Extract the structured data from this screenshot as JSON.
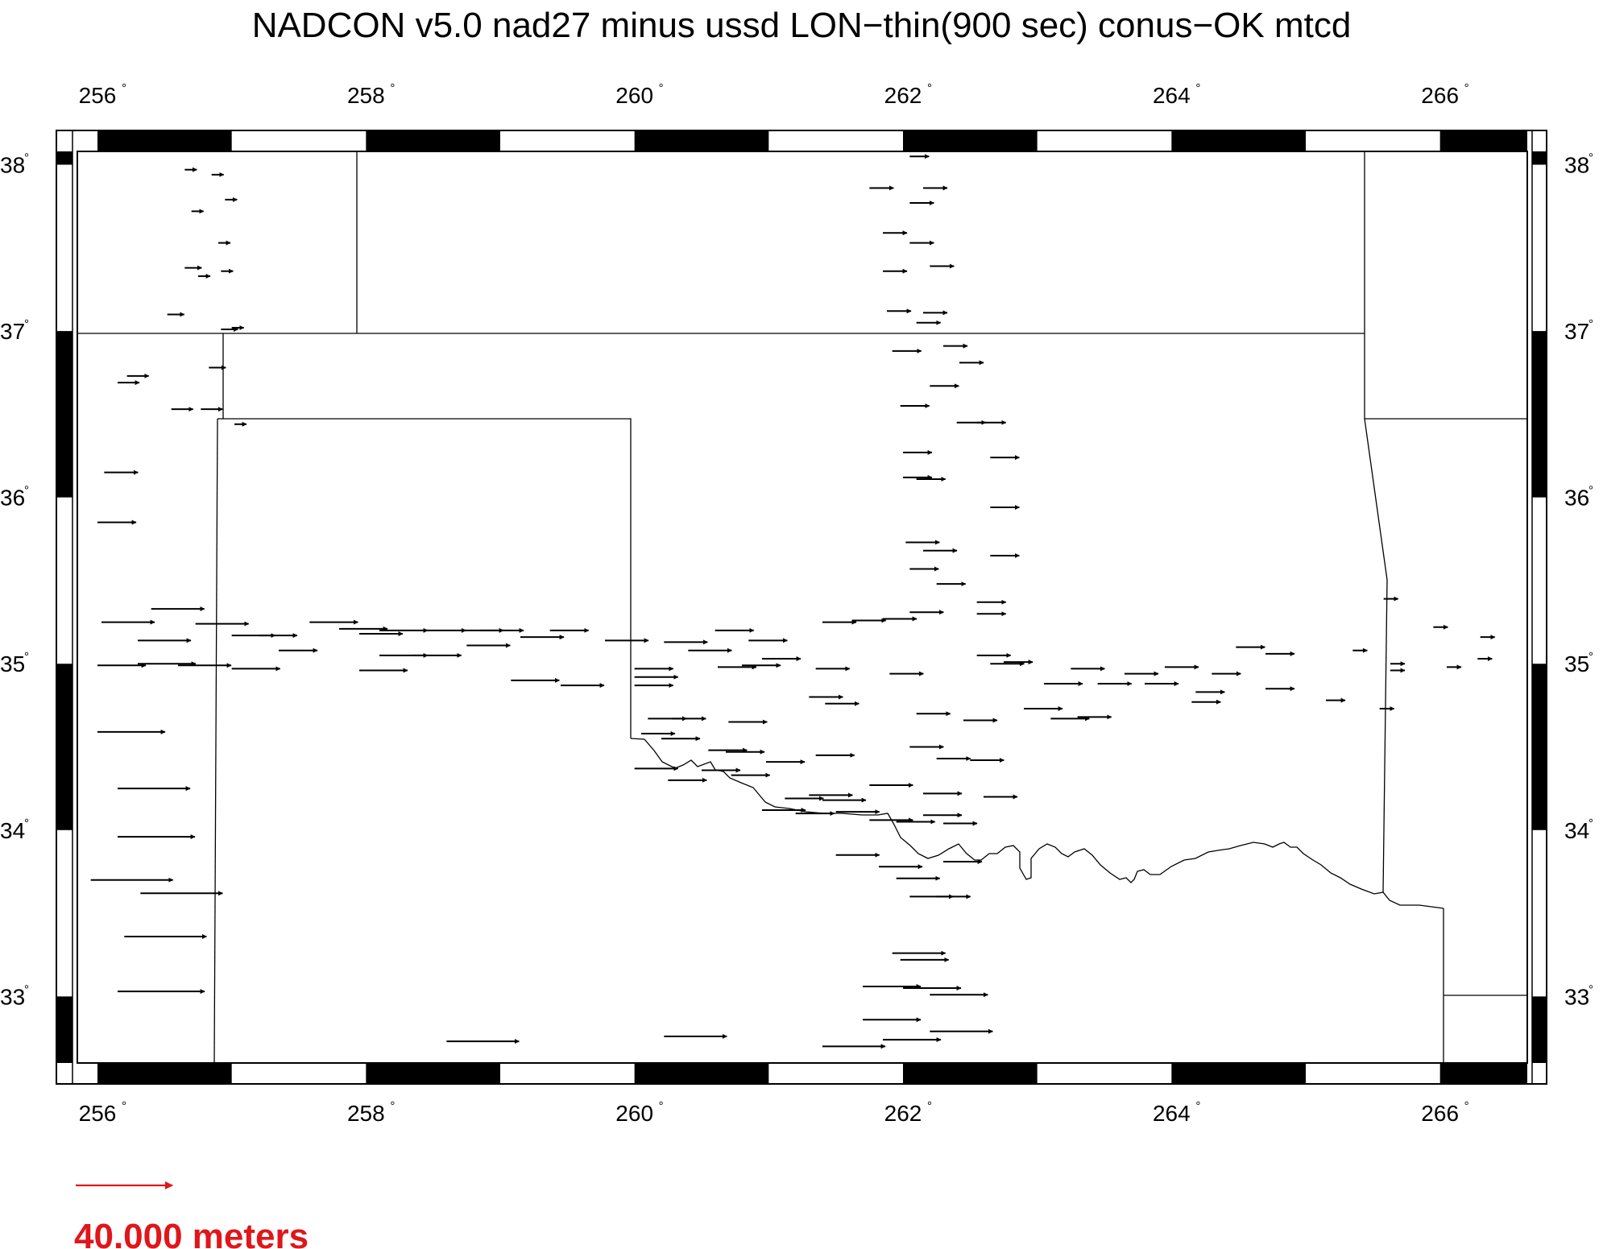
{
  "title": "NADCON v5.0 nad27 minus ussd LON−thin(900 sec) conus−OK mtcd",
  "legend": {
    "label": "40.000 meters",
    "value_m": 40,
    "color": "#e0161b"
  },
  "colors": {
    "arrow": "#000000",
    "border": "#000000",
    "background": "#ffffff",
    "legend": "#e0161b"
  },
  "axes": {
    "lon_ticks": [
      256,
      258,
      260,
      262,
      264,
      266
    ],
    "lat_ticks": [
      33,
      34,
      35,
      36,
      37,
      38
    ],
    "lon_tick_labels": [
      "256",
      "258",
      "260",
      "262",
      "264",
      "266"
    ],
    "lat_tick_labels": [
      "33",
      "34",
      "35",
      "36",
      "37",
      "38"
    ],
    "degree_symbol": "°",
    "lon_range": [
      255.85,
      266.65
    ],
    "lat_range": [
      32.6,
      38.08
    ]
  },
  "arrows_note": "lon, lat, length in meters (eastward)",
  "arrows": [
    [
      256.65,
      37.97,
      5
    ],
    [
      256.85,
      37.94,
      5
    ],
    [
      256.95,
      37.79,
      5
    ],
    [
      256.7,
      37.72,
      5
    ],
    [
      256.9,
      37.53,
      5
    ],
    [
      256.65,
      37.38,
      7
    ],
    [
      256.75,
      37.33,
      5
    ],
    [
      256.92,
      37.36,
      5
    ],
    [
      256.52,
      37.1,
      7
    ],
    [
      256.92,
      37.01,
      7
    ],
    [
      257.0,
      37.02,
      5
    ],
    [
      256.22,
      36.73,
      9
    ],
    [
      256.15,
      36.69,
      9
    ],
    [
      256.83,
      36.78,
      7
    ],
    [
      256.55,
      36.53,
      9
    ],
    [
      256.77,
      36.53,
      9
    ],
    [
      257.02,
      36.44,
      5
    ],
    [
      256.05,
      36.15,
      14
    ],
    [
      256.0,
      35.85,
      16
    ],
    [
      256.03,
      35.25,
      22
    ],
    [
      256.4,
      35.33,
      22
    ],
    [
      256.3,
      35.14,
      22
    ],
    [
      256.73,
      35.24,
      22
    ],
    [
      256.0,
      34.99,
      20
    ],
    [
      256.3,
      35.0,
      24
    ],
    [
      256.6,
      34.99,
      22
    ],
    [
      257.0,
      35.17,
      18
    ],
    [
      257.2,
      35.17,
      16
    ],
    [
      257.0,
      34.97,
      20
    ],
    [
      257.35,
      35.08,
      16
    ],
    [
      257.58,
      35.25,
      20
    ],
    [
      257.8,
      35.21,
      20
    ],
    [
      257.95,
      35.18,
      18
    ],
    [
      258.1,
      35.2,
      20
    ],
    [
      258.42,
      35.2,
      18
    ],
    [
      258.7,
      35.2,
      18
    ],
    [
      258.85,
      35.2,
      18
    ],
    [
      258.75,
      35.11,
      18
    ],
    [
      257.95,
      34.96,
      20
    ],
    [
      258.1,
      35.05,
      20
    ],
    [
      258.35,
      35.05,
      20
    ],
    [
      259.08,
      34.9,
      20
    ],
    [
      259.15,
      35.16,
      18
    ],
    [
      259.37,
      35.2,
      16
    ],
    [
      259.45,
      34.87,
      18
    ],
    [
      259.78,
      35.14,
      18
    ],
    [
      260.0,
      34.92,
      18
    ],
    [
      260.0,
      34.87,
      16
    ],
    [
      260.0,
      34.97,
      16
    ],
    [
      260.22,
      35.13,
      18
    ],
    [
      260.4,
      35.08,
      18
    ],
    [
      260.6,
      35.2,
      16
    ],
    [
      260.62,
      34.98,
      16
    ],
    [
      260.8,
      34.99,
      16
    ],
    [
      260.85,
      35.14,
      16
    ],
    [
      260.95,
      35.03,
      16
    ],
    [
      260.1,
      34.67,
      16
    ],
    [
      260.28,
      34.67,
      14
    ],
    [
      260.05,
      34.58,
      14
    ],
    [
      260.2,
      34.55,
      16
    ],
    [
      260.0,
      34.37,
      18
    ],
    [
      260.25,
      34.3,
      16
    ],
    [
      260.5,
      34.36,
      16
    ],
    [
      260.55,
      34.48,
      16
    ],
    [
      260.68,
      34.47,
      16
    ],
    [
      260.72,
      34.33,
      16
    ],
    [
      260.7,
      34.65,
      16
    ],
    [
      260.98,
      34.41,
      16
    ],
    [
      260.95,
      34.12,
      18
    ],
    [
      261.12,
      34.19,
      16
    ],
    [
      261.2,
      34.1,
      16
    ],
    [
      261.3,
      34.21,
      18
    ],
    [
      261.35,
      34.45,
      16
    ],
    [
      261.4,
      34.18,
      18
    ],
    [
      261.5,
      34.11,
      18
    ],
    [
      261.3,
      34.8,
      14
    ],
    [
      261.42,
      34.76,
      14
    ],
    [
      261.35,
      34.97,
      14
    ],
    [
      261.4,
      35.25,
      14
    ],
    [
      261.62,
      35.26,
      14
    ],
    [
      261.5,
      33.85,
      18
    ],
    [
      261.4,
      32.7,
      26
    ],
    [
      261.75,
      34.27,
      18
    ],
    [
      261.75,
      34.06,
      18
    ],
    [
      261.95,
      34.05,
      16
    ],
    [
      261.82,
      33.78,
      18
    ],
    [
      261.95,
      33.71,
      18
    ],
    [
      261.9,
      34.94,
      14
    ],
    [
      261.85,
      35.27,
      14
    ],
    [
      262.05,
      35.31,
      14
    ],
    [
      262.05,
      35.57,
      12
    ],
    [
      262.02,
      35.73,
      14
    ],
    [
      262.15,
      35.68,
      14
    ],
    [
      262.25,
      35.48,
      12
    ],
    [
      262.55,
      35.37,
      12
    ],
    [
      262.55,
      35.3,
      12
    ],
    [
      262.65,
      35.65,
      12
    ],
    [
      262.55,
      35.05,
      14
    ],
    [
      262.65,
      35.0,
      14
    ],
    [
      262.75,
      35.01,
      12
    ],
    [
      262.1,
      34.7,
      14
    ],
    [
      262.45,
      34.66,
      14
    ],
    [
      262.05,
      34.5,
      14
    ],
    [
      262.25,
      34.43,
      14
    ],
    [
      262.5,
      34.42,
      14
    ],
    [
      262.6,
      34.2,
      14
    ],
    [
      262.15,
      34.22,
      16
    ],
    [
      262.15,
      34.09,
      16
    ],
    [
      262.3,
      34.04,
      14
    ],
    [
      262.3,
      33.81,
      16
    ],
    [
      262.05,
      33.6,
      18
    ],
    [
      262.25,
      33.6,
      14
    ],
    [
      261.92,
      33.26,
      22
    ],
    [
      261.98,
      33.22,
      20
    ],
    [
      261.7,
      33.06,
      24
    ],
    [
      262.0,
      33.05,
      24
    ],
    [
      262.2,
      33.01,
      24
    ],
    [
      261.7,
      32.86,
      24
    ],
    [
      261.85,
      32.74,
      24
    ],
    [
      262.2,
      32.79,
      26
    ],
    [
      262.0,
      36.27,
      12
    ],
    [
      262.0,
      36.12,
      12
    ],
    [
      262.1,
      36.11,
      12
    ],
    [
      262.65,
      36.24,
      12
    ],
    [
      262.65,
      35.94,
      12
    ],
    [
      262.4,
      36.45,
      12
    ],
    [
      262.55,
      36.45,
      12
    ],
    [
      261.98,
      36.55,
      12
    ],
    [
      262.2,
      36.67,
      12
    ],
    [
      261.92,
      36.88,
      12
    ],
    [
      262.3,
      36.91,
      10
    ],
    [
      262.42,
      36.81,
      10
    ],
    [
      261.88,
      37.12,
      10
    ],
    [
      262.15,
      37.11,
      10
    ],
    [
      262.1,
      37.05,
      10
    ],
    [
      261.85,
      37.36,
      10
    ],
    [
      262.2,
      37.39,
      10
    ],
    [
      261.85,
      37.59,
      10
    ],
    [
      262.05,
      37.53,
      10
    ],
    [
      261.75,
      37.86,
      10
    ],
    [
      262.05,
      37.77,
      10
    ],
    [
      262.15,
      37.86,
      10
    ],
    [
      262.05,
      38.05,
      8
    ],
    [
      262.9,
      34.73,
      16
    ],
    [
      263.1,
      34.67,
      16
    ],
    [
      263.3,
      34.68,
      14
    ],
    [
      263.05,
      34.88,
      16
    ],
    [
      263.25,
      34.97,
      14
    ],
    [
      263.45,
      34.88,
      14
    ],
    [
      263.65,
      34.94,
      14
    ],
    [
      263.8,
      34.88,
      14
    ],
    [
      263.95,
      34.98,
      14
    ],
    [
      264.18,
      34.83,
      12
    ],
    [
      264.15,
      34.77,
      12
    ],
    [
      264.3,
      34.94,
      12
    ],
    [
      264.48,
      35.1,
      12
    ],
    [
      264.7,
      35.06,
      12
    ],
    [
      264.7,
      34.85,
      12
    ],
    [
      265.15,
      34.78,
      8
    ],
    [
      265.35,
      35.08,
      6
    ],
    [
      265.55,
      34.73,
      6
    ],
    [
      265.58,
      35.39,
      6
    ],
    [
      265.63,
      35.0,
      6
    ],
    [
      265.63,
      34.96,
      6
    ],
    [
      265.95,
      35.22,
      6
    ],
    [
      266.05,
      34.98,
      6
    ],
    [
      266.28,
      35.03,
      6
    ],
    [
      266.3,
      35.16,
      6
    ],
    [
      258.6,
      32.73,
      30
    ],
    [
      260.22,
      32.76,
      26
    ],
    [
      256.15,
      34.25,
      30
    ],
    [
      256.15,
      33.96,
      32
    ],
    [
      255.95,
      33.7,
      34
    ],
    [
      256.32,
      33.62,
      34
    ],
    [
      256.2,
      33.36,
      34
    ],
    [
      256.15,
      33.03,
      36
    ],
    [
      256.0,
      34.59,
      28
    ],
    [
      257.0,
      32.95,
      0
    ],
    [
      258.05,
      37.75,
      0
    ]
  ]
}
